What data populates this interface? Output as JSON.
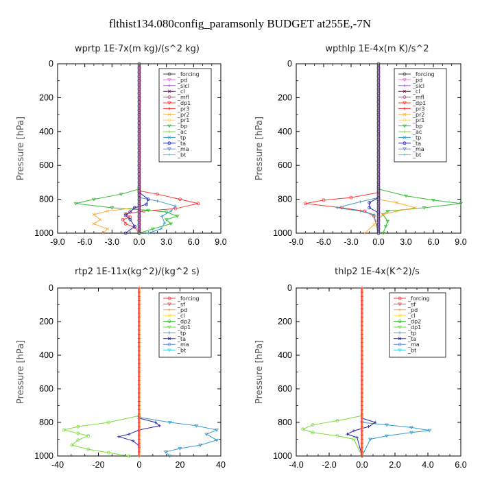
{
  "page": {
    "title": "flthist134.080config_paramsonly  BUDGET at255E,-7N"
  },
  "colors": {
    "forcing": "#404040",
    "pd": "#d080d0",
    "sicl": "#9966cc",
    "cl": "#880066",
    "mfl": "#cc3377",
    "dp1": "#ff3333",
    "pr3": "#ee2222",
    "pr2": "#ffaa33",
    "pr1": "#ffdd33",
    "bp": "#33bb33",
    "ac": "#77dd33",
    "tp": "#3399cc",
    "ta": "#2222aa",
    "ma": "#5588ee",
    "bt": "#33ddee",
    "sf": "#ff4444",
    "dp2": "#33bb33",
    "red_forcing": "#ff3333"
  },
  "chart_data": [
    {
      "type": "line",
      "title": "wprtp  1E-7x(m kg)/(s^2 kg)",
      "ylabel": "Pressure [hPa]",
      "xlim": [
        -9,
        9
      ],
      "ylim": [
        1000,
        0
      ],
      "xticks": [
        "-9.0",
        "-6.0",
        "-3.0",
        "0.0",
        "3.0",
        "6.0",
        "9.0"
      ],
      "yticks": [
        "0",
        "200",
        "400",
        "600",
        "800",
        "1000"
      ],
      "legend": [
        "_forcing",
        "_pd",
        "_sicl",
        "_cl",
        "_mfl",
        "_dp1",
        "_pr3",
        "_pr2",
        "_pr1",
        "_bp",
        "_ac",
        "_tp",
        "_ta",
        "_ma",
        "_bt"
      ],
      "legend_keys": [
        "forcing",
        "pd",
        "sicl",
        "cl",
        "mfl",
        "dp1",
        "pr3",
        "pr2",
        "pr1",
        "bp",
        "ac",
        "tp",
        "ta",
        "ma",
        "bt"
      ],
      "series": [
        {
          "name": "_dp1",
          "key": "dp1",
          "points": [
            [
              0,
              750
            ],
            [
              2,
              770
            ],
            [
              4.5,
              800
            ],
            [
              6.5,
              825
            ],
            [
              4,
              855
            ],
            [
              0.5,
              870
            ],
            [
              -1.5,
              885
            ],
            [
              -1,
              905
            ],
            [
              -1.8,
              920
            ],
            [
              -1.5,
              945
            ],
            [
              -0.5,
              965
            ],
            [
              0,
              1000
            ]
          ]
        },
        {
          "name": "_bp",
          "key": "bp",
          "points": [
            [
              0,
              740
            ],
            [
              -2,
              770
            ],
            [
              -5,
              800
            ],
            [
              -7,
              825
            ],
            [
              -3,
              850
            ],
            [
              1,
              865
            ],
            [
              3,
              875
            ],
            [
              4.2,
              900
            ],
            [
              3,
              920
            ],
            [
              3.5,
              945
            ],
            [
              1.5,
              975
            ],
            [
              0,
              1000
            ]
          ]
        },
        {
          "name": "_tp",
          "key": "tp",
          "points": [
            [
              0,
              790
            ],
            [
              2,
              810
            ],
            [
              4,
              840
            ],
            [
              3.5,
              870
            ],
            [
              2.5,
              900
            ],
            [
              2.8,
              940
            ],
            [
              2.4,
              975
            ],
            [
              1,
              1000
            ]
          ]
        },
        {
          "name": "_pr2",
          "key": "pr2",
          "points": [
            [
              -0.5,
              850
            ],
            [
              -3.5,
              870
            ],
            [
              -5,
              890
            ],
            [
              -4.3,
              920
            ],
            [
              -5,
              945
            ],
            [
              -3.5,
              975
            ],
            [
              -4,
              1000
            ]
          ]
        },
        {
          "name": "_ta",
          "key": "ta",
          "points": [
            [
              0,
              760
            ],
            [
              1,
              800
            ],
            [
              0.8,
              830
            ],
            [
              -0.5,
              850
            ],
            [
              -1,
              875
            ],
            [
              -1.5,
              895
            ],
            [
              -1,
              920
            ],
            [
              -0.5,
              960
            ],
            [
              -1.5,
              1000
            ]
          ]
        }
      ]
    },
    {
      "type": "line",
      "title": "wpthlp  1E-4x(m K)/s^2",
      "ylabel": "Pressure [hPa]",
      "xlim": [
        -9,
        9
      ],
      "ylim": [
        1000,
        0
      ],
      "xticks": [
        "-9.0",
        "-6.0",
        "-3.0",
        "0.0",
        "3.0",
        "6.0",
        "9.0"
      ],
      "yticks": [
        "0",
        "200",
        "400",
        "600",
        "800",
        "1000"
      ],
      "legend": [
        "_forcing",
        "_pd",
        "_sicl",
        "_cl",
        "_mfl",
        "_dp1",
        "_pr3",
        "_pr2",
        "_pr1",
        "_bp",
        "_ac",
        "_tp",
        "_ta",
        "_ma",
        "_bt"
      ],
      "legend_keys": [
        "forcing",
        "pd",
        "sicl",
        "cl",
        "mfl",
        "dp1",
        "pr3",
        "pr2",
        "pr1",
        "bp",
        "ac",
        "tp",
        "ta",
        "ma",
        "bt"
      ],
      "series": [
        {
          "name": "_dp1",
          "key": "dp1",
          "points": [
            [
              0,
              760
            ],
            [
              -3,
              790
            ],
            [
              -6,
              805
            ],
            [
              -8,
              825
            ],
            [
              -4,
              850
            ],
            [
              -1.5,
              870
            ],
            [
              -0.5,
              900
            ],
            [
              0,
              1000
            ]
          ]
        },
        {
          "name": "_bp",
          "key": "bp",
          "points": [
            [
              0,
              740
            ],
            [
              3,
              780
            ],
            [
              6,
              805
            ],
            [
              9,
              825
            ],
            [
              5,
              850
            ],
            [
              1,
              870
            ],
            [
              0.5,
              890
            ],
            [
              1,
              930
            ],
            [
              0.8,
              960
            ],
            [
              0.5,
              1000
            ]
          ]
        },
        {
          "name": "_tp",
          "key": "tp",
          "points": [
            [
              0,
              790
            ],
            [
              -2,
              815
            ],
            [
              -4.5,
              850
            ],
            [
              -2,
              870
            ],
            [
              -0.5,
              890
            ],
            [
              0,
              1000
            ]
          ]
        },
        {
          "name": "_pr2",
          "key": "pr2",
          "points": [
            [
              0,
              800
            ],
            [
              2,
              820
            ],
            [
              4,
              850
            ],
            [
              2,
              870
            ],
            [
              0.5,
              890
            ],
            [
              -0.5,
              950
            ],
            [
              -1.5,
              1000
            ]
          ]
        },
        {
          "name": "_ta",
          "key": "ta",
          "points": [
            [
              0,
              790
            ],
            [
              -1,
              820
            ],
            [
              -1,
              850
            ],
            [
              0,
              880
            ],
            [
              0,
              1000
            ]
          ]
        }
      ]
    },
    {
      "type": "line",
      "title": "rtp2  1E-11x(kg^2)/(kg^2 s)",
      "ylabel": "Pressure [hPa]",
      "xlim": [
        -40,
        40
      ],
      "ylim": [
        1000,
        0
      ],
      "xticks": [
        "-40",
        "-20",
        "0",
        "20",
        "40"
      ],
      "yticks": [
        "0",
        "200",
        "400",
        "600",
        "800",
        "1000"
      ],
      "legend": [
        "_forcing",
        "_sf",
        "_pd",
        "_cl",
        "_dp2",
        "_dp1",
        "_tp",
        "_ta",
        "_ma",
        "_bt"
      ],
      "legend_keys": [
        "red_forcing",
        "sf",
        "pr2",
        "pr1",
        "dp2",
        "ac",
        "tp",
        "ta",
        "ma",
        "bt"
      ],
      "series": [
        {
          "name": "_dp1",
          "key": "ac",
          "points": [
            [
              0,
              760
            ],
            [
              -15,
              800
            ],
            [
              -30,
              825
            ],
            [
              -37,
              845
            ],
            [
              -30,
              865
            ],
            [
              -25,
              880
            ],
            [
              -30,
              905
            ],
            [
              -33,
              935
            ],
            [
              -25,
              960
            ],
            [
              -15,
              980
            ],
            [
              -5,
              1000
            ]
          ]
        },
        {
          "name": "_tp",
          "key": "tp",
          "points": [
            [
              0,
              770
            ],
            [
              15,
              800
            ],
            [
              28,
              820
            ],
            [
              38,
              845
            ],
            [
              33,
              870
            ],
            [
              38,
              905
            ],
            [
              30,
              935
            ],
            [
              20,
              955
            ],
            [
              13,
              975
            ],
            [
              15,
              1000
            ]
          ]
        },
        {
          "name": "_ta",
          "key": "ta",
          "points": [
            [
              0,
              775
            ],
            [
              8,
              800
            ],
            [
              10,
              820
            ],
            [
              0,
              845
            ],
            [
              -5,
              870
            ],
            [
              -10,
              885
            ],
            [
              -3,
              910
            ],
            [
              0,
              940
            ],
            [
              0,
              1000
            ]
          ]
        }
      ]
    },
    {
      "type": "line",
      "title": "thlp2  1E-4x(K^2)/s",
      "ylabel": "Pressure [hPa]",
      "xlim": [
        -4,
        6
      ],
      "ylim": [
        1000,
        0
      ],
      "xticks": [
        "-4.0",
        "-2.0",
        "0.0",
        "2.0",
        "4.0",
        "6.0"
      ],
      "yticks": [
        "0",
        "200",
        "400",
        "600",
        "800",
        "1000"
      ],
      "legend": [
        "_forcing",
        "_sf",
        "_pd",
        "_cl",
        "_dp2",
        "_dp1",
        "_tp",
        "_ta",
        "_ma",
        "_bt"
      ],
      "legend_keys": [
        "red_forcing",
        "sf",
        "pr2",
        "pr1",
        "dp2",
        "ac",
        "tp",
        "ta",
        "ma",
        "bt"
      ],
      "series": [
        {
          "name": "_dp1",
          "key": "ac",
          "points": [
            [
              0,
              760
            ],
            [
              -1.5,
              790
            ],
            [
              -3,
              815
            ],
            [
              -3.6,
              840
            ],
            [
              -3,
              860
            ],
            [
              -1.5,
              880
            ],
            [
              -0.5,
              900
            ],
            [
              0,
              1000
            ]
          ]
        },
        {
          "name": "_tp",
          "key": "tp",
          "points": [
            [
              0,
              800
            ],
            [
              1.5,
              815
            ],
            [
              3,
              830
            ],
            [
              4.1,
              848
            ],
            [
              3,
              860
            ],
            [
              1.5,
              880
            ],
            [
              0.5,
              900
            ],
            [
              0,
              1000
            ]
          ]
        },
        {
          "name": "_ta",
          "key": "ta",
          "points": [
            [
              0,
              775
            ],
            [
              0.8,
              800
            ],
            [
              0.4,
              825
            ],
            [
              -0.5,
              850
            ],
            [
              -0.9,
              870
            ],
            [
              -0.3,
              890
            ],
            [
              0,
              1000
            ]
          ]
        }
      ]
    }
  ]
}
